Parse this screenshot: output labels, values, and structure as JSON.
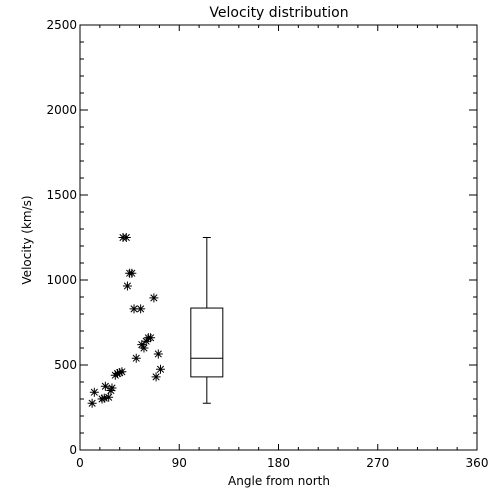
{
  "chart_data": {
    "type": "scatter",
    "title": "Velocity distribution",
    "xlabel": "Angle from north",
    "ylabel": "Velocity (km/s)",
    "xlim": [
      0,
      360
    ],
    "ylim": [
      0,
      2500
    ],
    "xticks": [
      0,
      90,
      180,
      270,
      360
    ],
    "yticks": [
      0,
      500,
      1000,
      1500,
      2000,
      2500
    ],
    "grid": false,
    "marker": "asterisk",
    "points": [
      {
        "x": 11,
        "y": 275
      },
      {
        "x": 13,
        "y": 340
      },
      {
        "x": 20,
        "y": 300
      },
      {
        "x": 22,
        "y": 305
      },
      {
        "x": 23,
        "y": 375
      },
      {
        "x": 26,
        "y": 310
      },
      {
        "x": 28,
        "y": 350
      },
      {
        "x": 29,
        "y": 365
      },
      {
        "x": 32,
        "y": 440
      },
      {
        "x": 34,
        "y": 450
      },
      {
        "x": 36,
        "y": 455
      },
      {
        "x": 38,
        "y": 460
      },
      {
        "x": 39,
        "y": 1250
      },
      {
        "x": 42,
        "y": 1250
      },
      {
        "x": 43,
        "y": 965
      },
      {
        "x": 45,
        "y": 1040
      },
      {
        "x": 47,
        "y": 1040
      },
      {
        "x": 49,
        "y": 830
      },
      {
        "x": 51,
        "y": 540
      },
      {
        "x": 55,
        "y": 830
      },
      {
        "x": 56,
        "y": 620
      },
      {
        "x": 58,
        "y": 600
      },
      {
        "x": 60,
        "y": 640
      },
      {
        "x": 62,
        "y": 660
      },
      {
        "x": 64,
        "y": 660
      },
      {
        "x": 67,
        "y": 895
      },
      {
        "x": 69,
        "y": 430
      },
      {
        "x": 71,
        "y": 565
      },
      {
        "x": 73,
        "y": 475
      }
    ],
    "boxplot": {
      "x": 115,
      "min": 275,
      "q1": 430,
      "median": 540,
      "q3": 835,
      "max": 1250
    }
  }
}
